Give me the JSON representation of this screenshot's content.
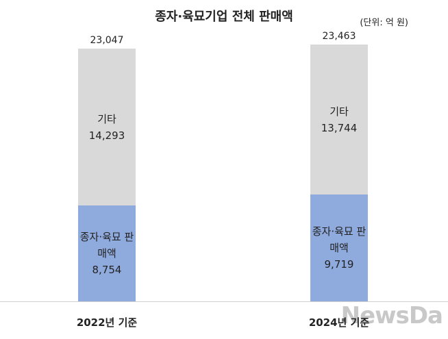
{
  "chart_data": {
    "type": "bar",
    "stacked": true,
    "title": "종자·육묘기업 전체 판매액",
    "unit": "(단위: 억 원)",
    "categories": [
      "2022년 기준",
      "2024년 기준"
    ],
    "series": [
      {
        "name": "종자·육묘 판매액",
        "color": "#8faadc",
        "values": [
          8754,
          9719
        ],
        "value_labels": [
          "8,754",
          "9,719"
        ]
      },
      {
        "name": "기타",
        "color": "#d9d9d9",
        "values": [
          14293,
          13744
        ],
        "value_labels": [
          "14,293",
          "13,744"
        ]
      }
    ],
    "total_labels": [
      "23,047",
      "23,463"
    ],
    "watermark": "NewsDa"
  }
}
